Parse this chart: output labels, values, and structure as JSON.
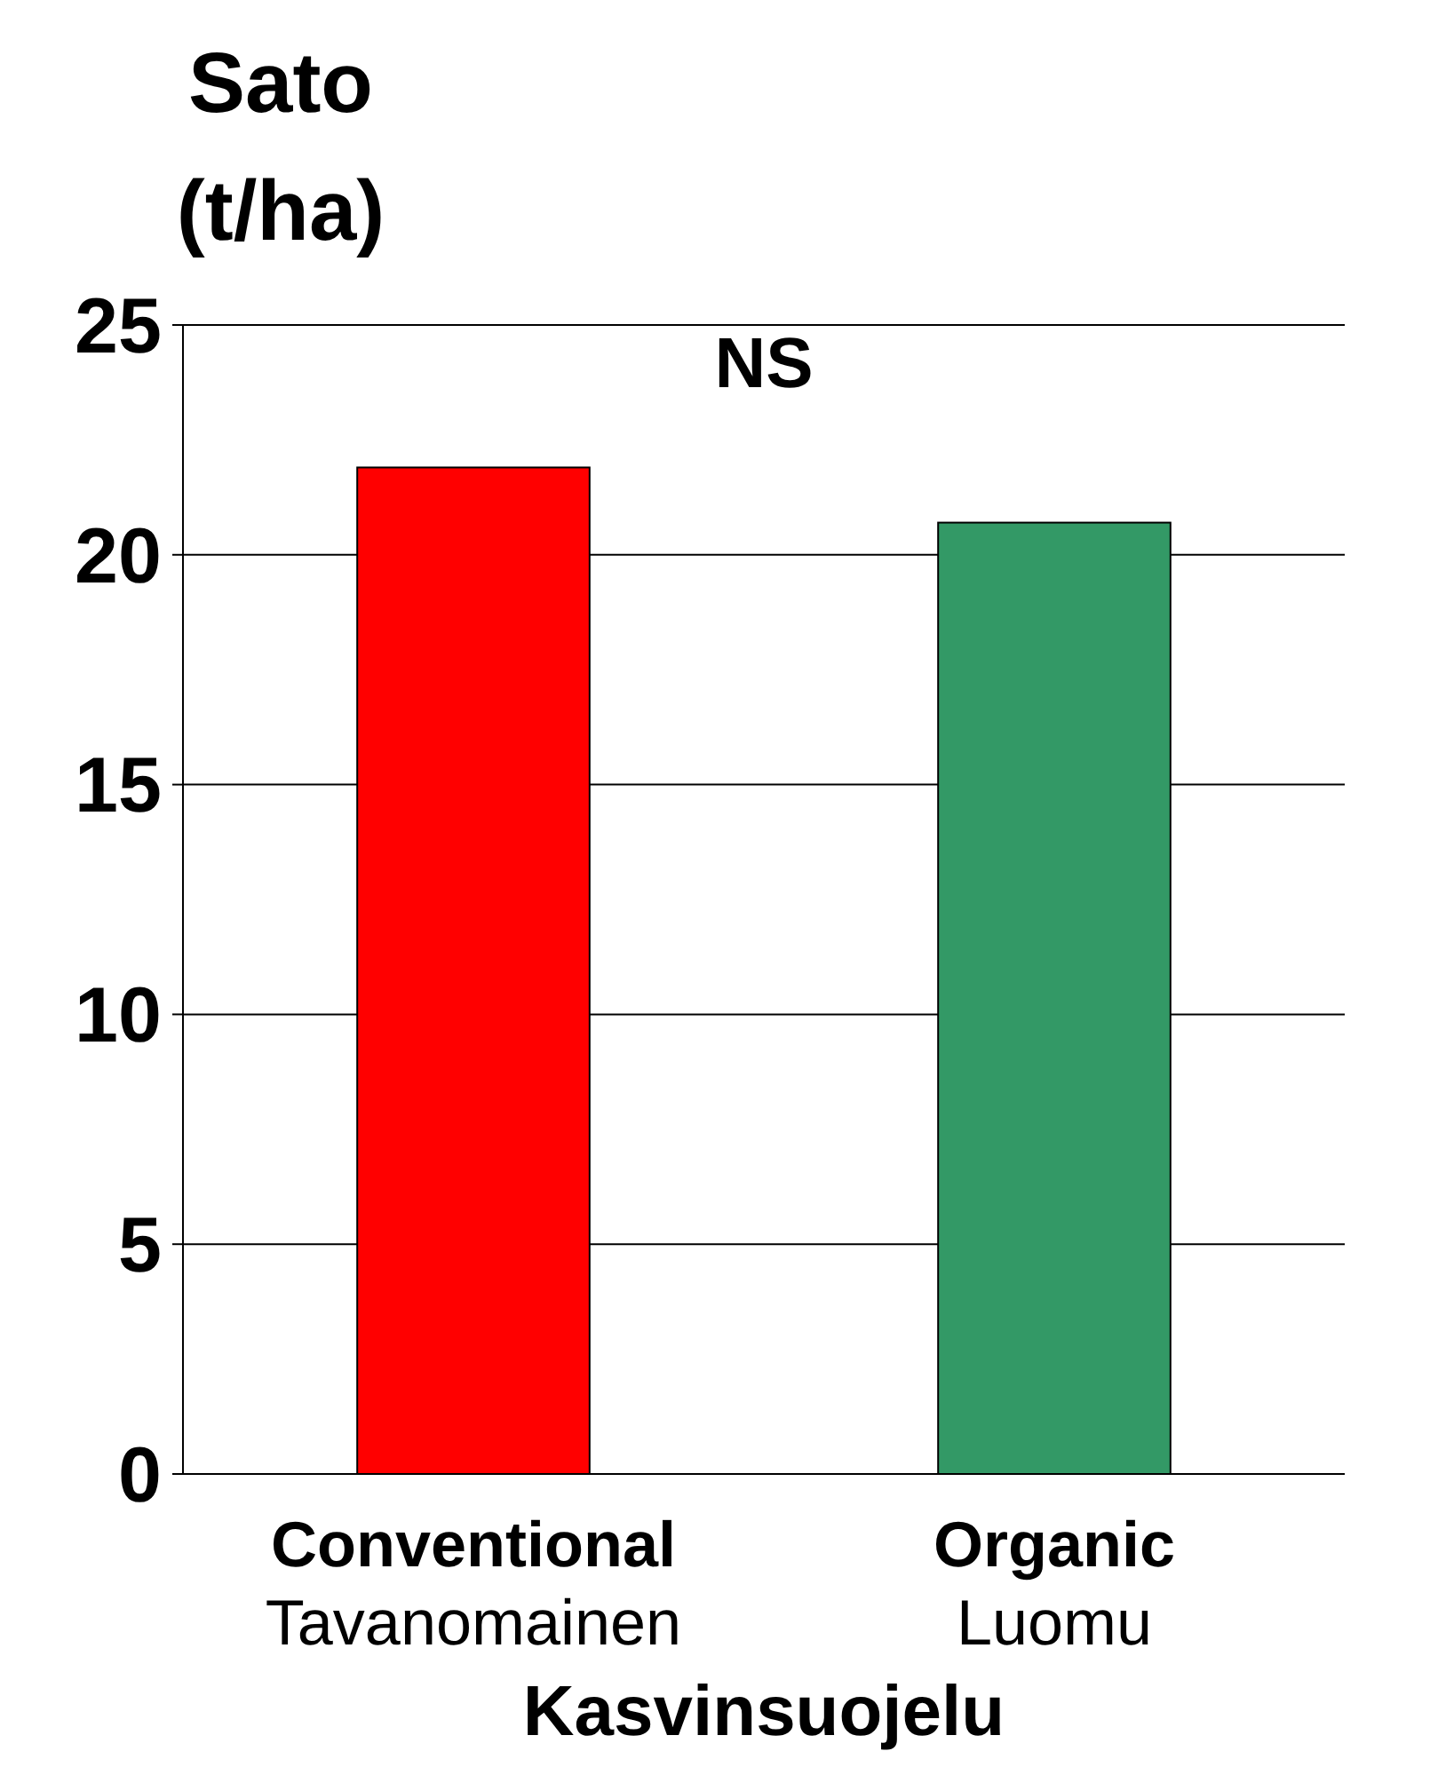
{
  "chart_data": {
    "type": "bar",
    "ylabel": "Sato (t/ha)",
    "xlabel": "Kasvinsuojelu",
    "categories": [
      "Conventional\nTavanomainen",
      "Organic\nLuomu"
    ],
    "values": [
      21.9,
      20.7
    ],
    "colors": [
      "#ff0000",
      "#339966"
    ],
    "ylim": [
      0,
      25
    ],
    "yticks": [
      0,
      5,
      10,
      15,
      20,
      25
    ],
    "grid": "y",
    "annotations": [
      "NS"
    ]
  }
}
